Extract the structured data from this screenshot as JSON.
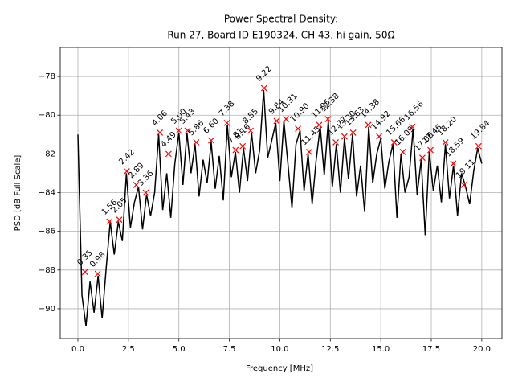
{
  "chart_data": {
    "type": "line",
    "title": [
      "Power Spectral Density:",
      "Run 27, Board ID E190324, CH 43, hi gain, 50Ω"
    ],
    "xlabel": "Frequency [MHz]",
    "ylabel": "PSD [dB Full Scale]",
    "x": [
      0,
      0.2,
      0.4,
      0.6,
      0.8,
      1.0,
      1.2,
      1.4,
      1.6,
      1.8,
      2.0,
      2.2,
      2.4,
      2.6,
      2.8,
      3.0,
      3.2,
      3.4,
      3.6,
      3.8,
      4.0,
      4.2,
      4.4,
      4.6,
      4.8,
      5.0,
      5.2,
      5.4,
      5.6,
      5.8,
      6.0,
      6.2,
      6.4,
      6.6,
      6.8,
      7.0,
      7.2,
      7.4,
      7.6,
      7.8,
      8.0,
      8.2,
      8.4,
      8.6,
      8.8,
      9.0,
      9.2,
      9.4,
      9.6,
      9.8,
      10.0,
      10.2,
      10.4,
      10.6,
      10.8,
      11.0,
      11.2,
      11.4,
      11.6,
      11.8,
      12.0,
      12.2,
      12.4,
      12.6,
      12.8,
      13.0,
      13.2,
      13.4,
      13.6,
      13.8,
      14.0,
      14.2,
      14.4,
      14.6,
      14.8,
      15.0,
      15.2,
      15.4,
      15.6,
      15.8,
      16.0,
      16.2,
      16.4,
      16.6,
      16.8,
      17.0,
      17.2,
      17.4,
      17.6,
      17.8,
      18.0,
      18.2,
      18.4,
      18.6,
      18.8,
      19.0,
      19.2,
      19.4,
      19.6,
      19.8,
      20.0
    ],
    "series": [
      {
        "color": "#000000",
        "values": [
          -81.0,
          -89.3,
          -90.9,
          -88.6,
          -90.2,
          -88.3,
          -90.5,
          -87.9,
          -85.5,
          -87.2,
          -85.5,
          -86.5,
          -83.0,
          -85.8,
          -84.5,
          -83.7,
          -85.9,
          -84.1,
          -85.2,
          -84.0,
          -81.0,
          -84.9,
          -83.0,
          -85.3,
          -82.5,
          -80.9,
          -83.6,
          -80.9,
          -83.0,
          -81.5,
          -84.2,
          -82.3,
          -83.5,
          -81.4,
          -83.8,
          -82.1,
          -84.4,
          -80.5,
          -83.2,
          -81.9,
          -84.0,
          -81.7,
          -83.4,
          -80.9,
          -83.0,
          -81.8,
          -78.7,
          -82.2,
          -81.3,
          -80.4,
          -83.4,
          -80.3,
          -82.5,
          -84.8,
          -81.5,
          -80.8,
          -83.9,
          -82.0,
          -84.6,
          -82.3,
          -80.6,
          -83.1,
          -80.3,
          -83.7,
          -81.5,
          -84.0,
          -81.2,
          -83.3,
          -81.0,
          -84.2,
          -82.6,
          -85.0,
          -80.6,
          -83.5,
          -82.0,
          -81.2,
          -83.8,
          -82.4,
          -81.5,
          -85.3,
          -82.0,
          -84.0,
          -83.2,
          -80.7,
          -84.1,
          -82.3,
          -86.2,
          -81.9,
          -83.9,
          -82.6,
          -84.5,
          -81.5,
          -84.3,
          -82.6,
          -85.2,
          -83.0,
          -83.7,
          -84.6,
          -82.9,
          -81.7,
          -82.5
        ]
      }
    ],
    "peaks": {
      "color": "#ff0000",
      "x": [
        0.35,
        0.98,
        1.56,
        2.05,
        2.42,
        2.89,
        3.36,
        4.06,
        4.49,
        5.0,
        5.43,
        5.86,
        6.6,
        7.38,
        7.81,
        8.16,
        8.55,
        9.22,
        9.84,
        10.31,
        10.9,
        11.45,
        11.95,
        12.38,
        12.77,
        13.2,
        13.63,
        14.38,
        14.92,
        15.66,
        16.09,
        16.56,
        17.06,
        17.46,
        18.2,
        18.59,
        19.11,
        19.84
      ],
      "values": [
        -88.1,
        -88.2,
        -85.5,
        -85.4,
        -82.9,
        -83.6,
        -84.0,
        -80.9,
        -82.0,
        -80.8,
        -80.8,
        -81.4,
        -81.3,
        -80.4,
        -81.8,
        -81.6,
        -80.8,
        -78.6,
        -80.3,
        -80.2,
        -80.7,
        -81.9,
        -80.5,
        -80.2,
        -81.4,
        -81.1,
        -80.9,
        -80.5,
        -81.1,
        -81.4,
        -81.9,
        -80.6,
        -82.2,
        -81.8,
        -81.4,
        -82.5,
        -83.6,
        -81.6
      ],
      "labels": [
        "0.35",
        "0.98",
        "1.56",
        "2.05",
        "2.42",
        "2.89",
        "3.36",
        "4.06",
        "4.49",
        "5.00",
        "5.43",
        "5.86",
        "6.60",
        "7.38",
        "7.81",
        "8.16",
        "8.55",
        "9.22",
        "9.84",
        "10.31",
        "10.90",
        "11.45",
        "11.95",
        "12.38",
        "12.77",
        "13.20",
        "13.63",
        "14.38",
        "14.92",
        "15.66",
        "16.09",
        "16.56",
        "17.06",
        "17.46",
        "18.20",
        "18.59",
        "19.11",
        "19.84"
      ]
    },
    "xlim": [
      -0.875,
      21.0
    ],
    "ylim": [
      -91.54,
      -76.5
    ],
    "xticks": [
      {
        "value": 0,
        "label": "0.0"
      },
      2.5,
      {
        "value": 5,
        "label": "5.0"
      },
      7.5,
      {
        "value": 10,
        "label": "10.0"
      },
      12.5,
      {
        "value": 15,
        "label": "15.0"
      },
      17.5,
      {
        "value": 20,
        "label": "20.0"
      }
    ],
    "yticks": [
      {
        "value": -90,
        "label": "−90"
      },
      {
        "value": -88,
        "label": "−88"
      },
      {
        "value": -86,
        "label": "−86"
      },
      {
        "value": -84,
        "label": "−84"
      },
      {
        "value": -82,
        "label": "−82"
      },
      {
        "value": -80,
        "label": "−80"
      },
      {
        "value": -78,
        "label": "−78"
      }
    ],
    "grid": true
  }
}
